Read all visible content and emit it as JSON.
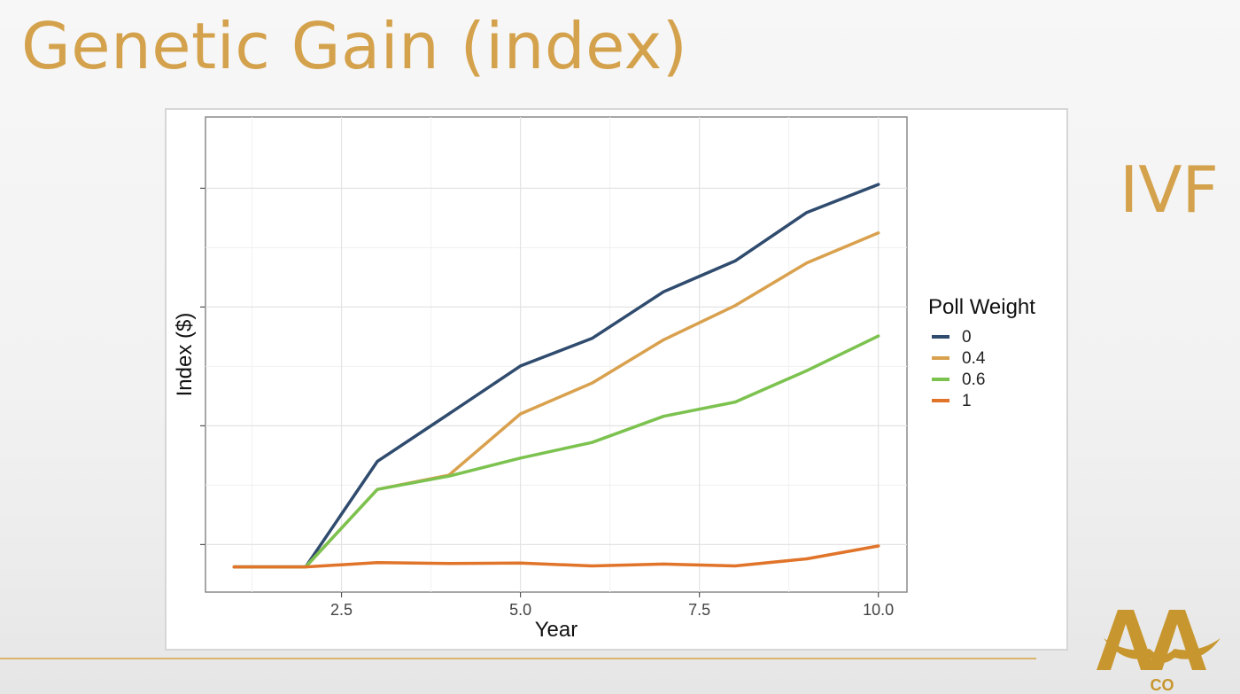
{
  "slide": {
    "title": "Genetic Gain (index)",
    "side_label": "IVF"
  },
  "logo": {
    "text": "AA",
    "sub": "CO"
  },
  "colors": {
    "title": "#d4a24c",
    "series": [
      "#2f4b6e",
      "#d9a14e",
      "#7cc24f",
      "#e0742a"
    ]
  },
  "chart_data": {
    "type": "line",
    "xlabel": "Year",
    "ylabel": "Index ($)",
    "xlim": [
      0.6,
      10.4
    ],
    "ylim": [
      0,
      100
    ],
    "x_ticks": [
      2.5,
      5.0,
      7.5,
      10.0
    ],
    "x_tick_labels": [
      "2.5",
      "5.0",
      "7.5",
      "10.0"
    ],
    "y_ticks": [
      10,
      35,
      60,
      85
    ],
    "grid": true,
    "legend_title": "Poll Weight",
    "legend_position": "right",
    "x": [
      1,
      2,
      3,
      4,
      5,
      6,
      7,
      8,
      9,
      10
    ],
    "series": [
      {
        "name": "0",
        "values": [
          5.3,
          5.3,
          27.5,
          37.5,
          47.6,
          53.4,
          63.2,
          69.7,
          79.9,
          85.8
        ]
      },
      {
        "name": "0.4",
        "values": [
          5.3,
          5.3,
          21.6,
          24.6,
          37.5,
          44.0,
          53.1,
          60.3,
          69.3,
          75.6
        ]
      },
      {
        "name": "0.6",
        "values": [
          5.3,
          5.3,
          21.6,
          24.4,
          28.2,
          31.5,
          37.0,
          40.0,
          46.6,
          53.9
        ]
      },
      {
        "name": "1",
        "values": [
          5.3,
          5.3,
          6.2,
          6.0,
          6.1,
          5.5,
          5.9,
          5.5,
          7.0,
          9.7
        ]
      }
    ]
  }
}
